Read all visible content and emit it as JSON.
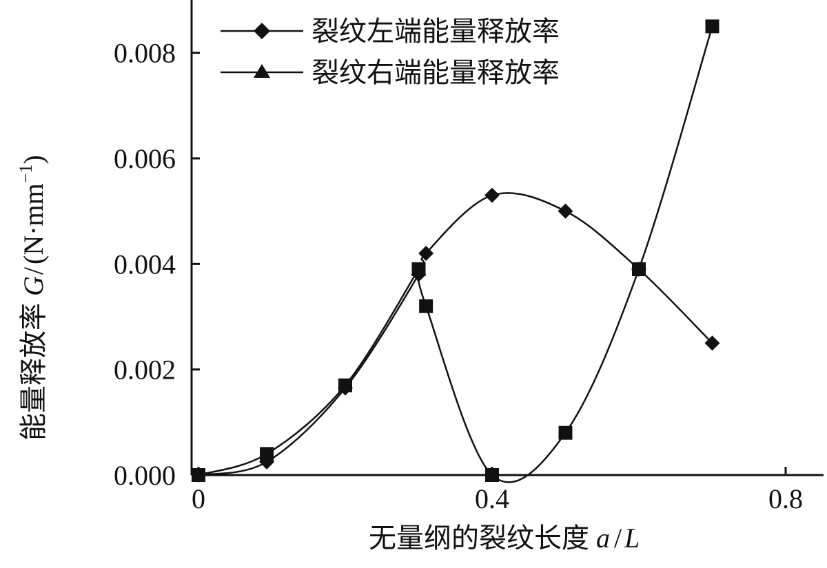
{
  "chart_data": {
    "type": "line",
    "xlabel_text": "无量纲的裂纹长度",
    "xlabel_var": "a",
    "xlabel_sep": "/",
    "xlabel_var2": "L",
    "ylabel_text": "能量释放率",
    "ylabel_var": "G",
    "ylabel_sep": "/",
    "ylabel_unit": "(N·mm",
    "ylabel_sup": "−1",
    "ylabel_close": ")",
    "xlim": [
      0,
      0.8
    ],
    "ylim": [
      0,
      0.009
    ],
    "x_ticks": [
      0,
      0.4,
      0.8
    ],
    "x_tick_labels": [
      "0",
      "0.4",
      "0.8"
    ],
    "y_ticks": [
      0,
      0.002,
      0.004,
      0.006,
      0.008
    ],
    "y_tick_labels": [
      "0.000",
      "0.002",
      "0.004",
      "0.006",
      "0.008"
    ],
    "legend_position": "top-center",
    "series": [
      {
        "name": "裂纹左端能量释放率",
        "marker": "diamond",
        "x": [
          0.0,
          0.093,
          0.2,
          0.3,
          0.31,
          0.4,
          0.5,
          0.6,
          0.7
        ],
        "y": [
          0.0,
          0.00025,
          0.00165,
          0.0038,
          0.0042,
          0.0053,
          0.005,
          0.0039,
          0.0025
        ]
      },
      {
        "name": "裂纹右端能量释放率",
        "marker": "triangle",
        "x": [
          0.0,
          0.093,
          0.2,
          0.3
        ],
        "y": [
          0.0,
          0.0004,
          0.0017,
          0.0039
        ],
        "segment_markers": "square",
        "continuation": {
          "x": [
            0.3,
            0.31,
            0.4,
            0.5,
            0.6,
            0.7
          ],
          "y": [
            0.0039,
            0.0032,
            0.0,
            0.0008,
            0.0039,
            0.0085
          ]
        }
      }
    ]
  }
}
